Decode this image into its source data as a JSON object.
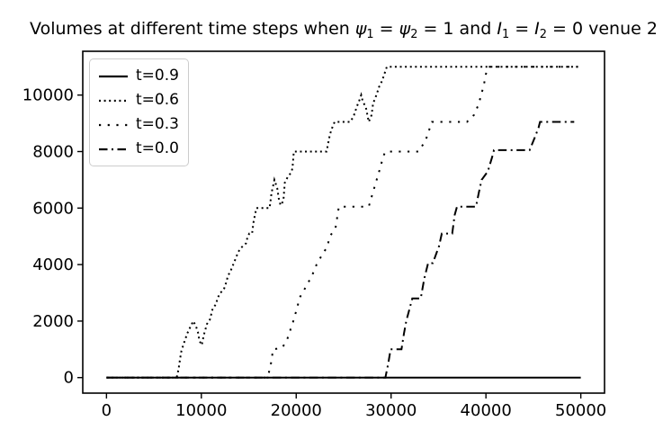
{
  "title": {
    "plain": "Volumes at different time steps when ψ1 = ψ2 = 1 and I1 = I2 = 0 venue 2",
    "segments": [
      {
        "text": "Volumes at different time steps when ",
        "style": "normal"
      },
      {
        "text": "ψ",
        "style": "italic"
      },
      {
        "text": "1",
        "style": "sub"
      },
      {
        "text": " = ",
        "style": "normal"
      },
      {
        "text": "ψ",
        "style": "italic"
      },
      {
        "text": "2",
        "style": "sub"
      },
      {
        "text": " = 1 and ",
        "style": "normal"
      },
      {
        "text": "I",
        "style": "italic"
      },
      {
        "text": "1",
        "style": "sub"
      },
      {
        "text": " = ",
        "style": "normal"
      },
      {
        "text": "I",
        "style": "italic"
      },
      {
        "text": "2",
        "style": "sub"
      },
      {
        "text": " = 0 venue 2",
        "style": "normal"
      }
    ]
  },
  "chart_data": {
    "type": "line",
    "title": "Volumes at different time steps when ψ1 = ψ2 = 1 and I1 = I2 = 0 venue 2",
    "xlabel": "",
    "ylabel": "",
    "xlim": [
      -2500,
      52500
    ],
    "ylim": [
      -550,
      11550
    ],
    "x_ticks": [
      0,
      10000,
      20000,
      30000,
      40000,
      50000
    ],
    "y_ticks": [
      0,
      2000,
      4000,
      6000,
      8000,
      10000
    ],
    "grid": false,
    "background": "#ffffff",
    "line_color": "#000000",
    "legend_position": "upper left",
    "series": [
      {
        "name": "t=0.9",
        "linestyle": "solid",
        "color": "#000000",
        "points": [
          [
            0,
            0
          ],
          [
            50000,
            0
          ]
        ]
      },
      {
        "name": "t=0.6",
        "linestyle": "dotted",
        "color": "#000000",
        "points": [
          [
            0,
            0
          ],
          [
            7400,
            0
          ],
          [
            7600,
            300
          ],
          [
            7750,
            650
          ],
          [
            7900,
            950
          ],
          [
            8200,
            1250
          ],
          [
            8500,
            1550
          ],
          [
            8850,
            1800
          ],
          [
            9150,
            2000
          ],
          [
            9450,
            1800
          ],
          [
            9650,
            1600
          ],
          [
            9800,
            1300
          ],
          [
            10050,
            1150
          ],
          [
            10250,
            1500
          ],
          [
            10600,
            1900
          ],
          [
            10900,
            2050
          ],
          [
            11200,
            2450
          ],
          [
            11550,
            2600
          ],
          [
            11700,
            2800
          ],
          [
            12000,
            3000
          ],
          [
            12350,
            3100
          ],
          [
            12650,
            3400
          ],
          [
            12800,
            3600
          ],
          [
            13050,
            3750
          ],
          [
            13300,
            3950
          ],
          [
            13600,
            4200
          ],
          [
            13900,
            4450
          ],
          [
            14200,
            4600
          ],
          [
            14700,
            4750
          ],
          [
            14850,
            4950
          ],
          [
            15050,
            5100
          ],
          [
            15350,
            5100
          ],
          [
            15500,
            5500
          ],
          [
            15650,
            5750
          ],
          [
            15800,
            6000
          ],
          [
            17200,
            6000
          ],
          [
            17400,
            6550
          ],
          [
            17550,
            6750
          ],
          [
            17700,
            7000
          ],
          [
            18000,
            6700
          ],
          [
            18150,
            6350
          ],
          [
            18350,
            6100
          ],
          [
            18650,
            6250
          ],
          [
            18800,
            6900
          ],
          [
            19100,
            7100
          ],
          [
            19450,
            7250
          ],
          [
            19600,
            7400
          ],
          [
            19750,
            8000
          ],
          [
            23200,
            8000
          ],
          [
            23550,
            8600
          ],
          [
            23850,
            8900
          ],
          [
            24050,
            9050
          ],
          [
            25700,
            9050
          ],
          [
            26050,
            9250
          ],
          [
            26400,
            9600
          ],
          [
            26700,
            9850
          ],
          [
            26850,
            10000
          ],
          [
            27000,
            9800
          ],
          [
            27350,
            9550
          ],
          [
            27650,
            9050
          ],
          [
            27950,
            9300
          ],
          [
            28100,
            9700
          ],
          [
            28450,
            10000
          ],
          [
            28750,
            10300
          ],
          [
            29050,
            10500
          ],
          [
            29250,
            10700
          ],
          [
            29550,
            11000
          ],
          [
            50000,
            11000
          ]
        ]
      },
      {
        "name": "t=0.3",
        "linestyle": "sparse-dotted",
        "color": "#000000",
        "points": [
          [
            0,
            0
          ],
          [
            16950,
            0
          ],
          [
            17100,
            150
          ],
          [
            17400,
            600
          ],
          [
            17550,
            1000
          ],
          [
            18500,
            1050
          ],
          [
            19000,
            1300
          ],
          [
            19750,
            2050
          ],
          [
            20400,
            2850
          ],
          [
            21000,
            3200
          ],
          [
            21650,
            3600
          ],
          [
            22150,
            4000
          ],
          [
            22900,
            4450
          ],
          [
            23250,
            4600
          ],
          [
            23550,
            5000
          ],
          [
            24150,
            5300
          ],
          [
            24500,
            6050
          ],
          [
            27650,
            6050
          ],
          [
            28300,
            6800
          ],
          [
            28750,
            7300
          ],
          [
            29200,
            7850
          ],
          [
            29400,
            8000
          ],
          [
            32900,
            8000
          ],
          [
            33650,
            8400
          ],
          [
            34000,
            8750
          ],
          [
            34300,
            9050
          ],
          [
            38000,
            9050
          ],
          [
            38750,
            9300
          ],
          [
            39200,
            9650
          ],
          [
            39500,
            10000
          ],
          [
            39800,
            10400
          ],
          [
            40000,
            10750
          ],
          [
            40250,
            11000
          ],
          [
            50000,
            11000
          ]
        ]
      },
      {
        "name": "t=0.0",
        "linestyle": "dashdot",
        "color": "#000000",
        "points": [
          [
            0,
            0
          ],
          [
            29400,
            0
          ],
          [
            29700,
            500
          ],
          [
            29950,
            1000
          ],
          [
            31100,
            1000
          ],
          [
            31350,
            1550
          ],
          [
            31600,
            2000
          ],
          [
            32240,
            2800
          ],
          [
            33130,
            2800
          ],
          [
            33500,
            3500
          ],
          [
            33900,
            4050
          ],
          [
            34400,
            4050
          ],
          [
            35050,
            4650
          ],
          [
            35350,
            5100
          ],
          [
            36450,
            5100
          ],
          [
            36700,
            5750
          ],
          [
            36950,
            6050
          ],
          [
            38950,
            6050
          ],
          [
            39250,
            6550
          ],
          [
            39550,
            7000
          ],
          [
            40200,
            7300
          ],
          [
            40650,
            7800
          ],
          [
            40850,
            8050
          ],
          [
            44600,
            8050
          ],
          [
            45150,
            8500
          ],
          [
            45550,
            8850
          ],
          [
            45700,
            9050
          ],
          [
            49300,
            9050
          ]
        ]
      }
    ]
  }
}
